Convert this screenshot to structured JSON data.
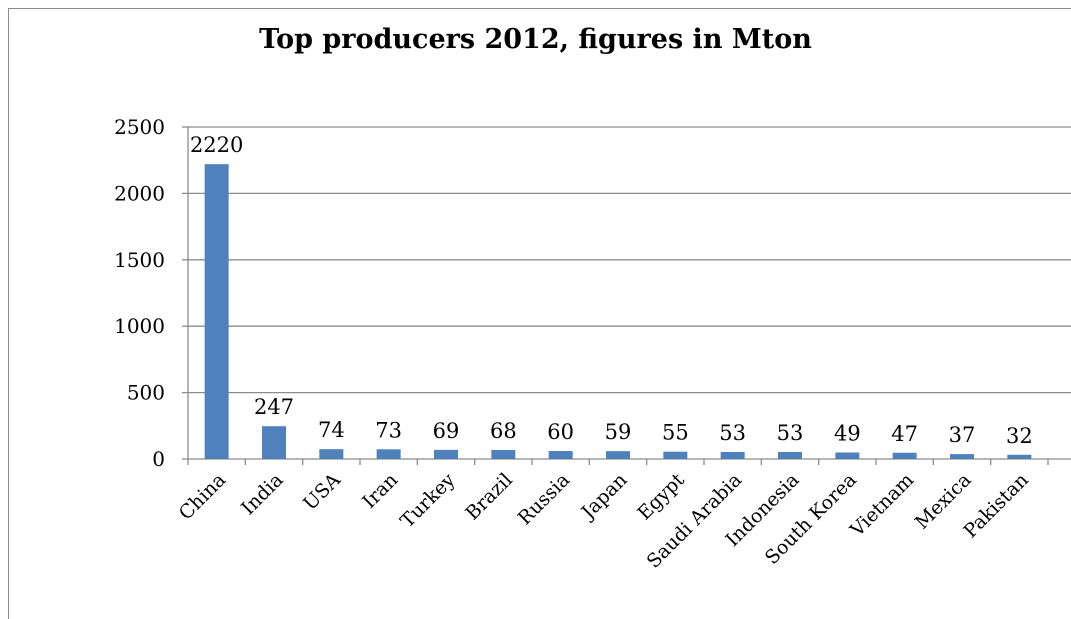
{
  "chart_data": {
    "type": "bar",
    "title": "Top producers 2012, figures in Mton",
    "xlabel": "",
    "ylabel": "",
    "categories": [
      "China",
      "India",
      "USA",
      "Iran",
      "Turkey",
      "Brazil",
      "Russia",
      "Japan",
      "Egypt",
      "Saudi Arabia",
      "Indonesia",
      "South Korea",
      "Vietnam",
      "Mexica",
      "Pakistan"
    ],
    "values": [
      2220,
      247,
      74,
      73,
      69,
      68,
      60,
      59,
      55,
      53,
      53,
      49,
      47,
      37,
      32
    ],
    "ylim": [
      0,
      2500
    ],
    "yticks": [
      0,
      500,
      1000,
      1500,
      2000,
      2500
    ],
    "grid": true,
    "legend": "none",
    "bar_color": "#4f81bd",
    "gridline_color": "#8c8c8c"
  }
}
